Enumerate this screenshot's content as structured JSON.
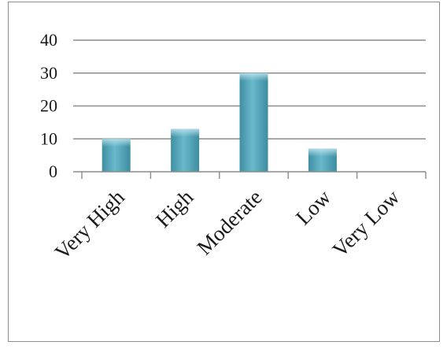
{
  "chart_data": {
    "type": "bar",
    "categories": [
      "Very High",
      "High",
      "Moderate",
      "Low",
      "Very Low"
    ],
    "values": [
      10,
      13,
      30,
      7,
      0
    ],
    "title": "",
    "xlabel": "",
    "ylabel": "",
    "ylim": [
      0,
      40
    ],
    "yticks": [
      "0",
      "10",
      "20",
      "30",
      "40"
    ],
    "grid": true,
    "bar_color": "#4a9fb5",
    "grid_color": "#8c8c8c"
  }
}
